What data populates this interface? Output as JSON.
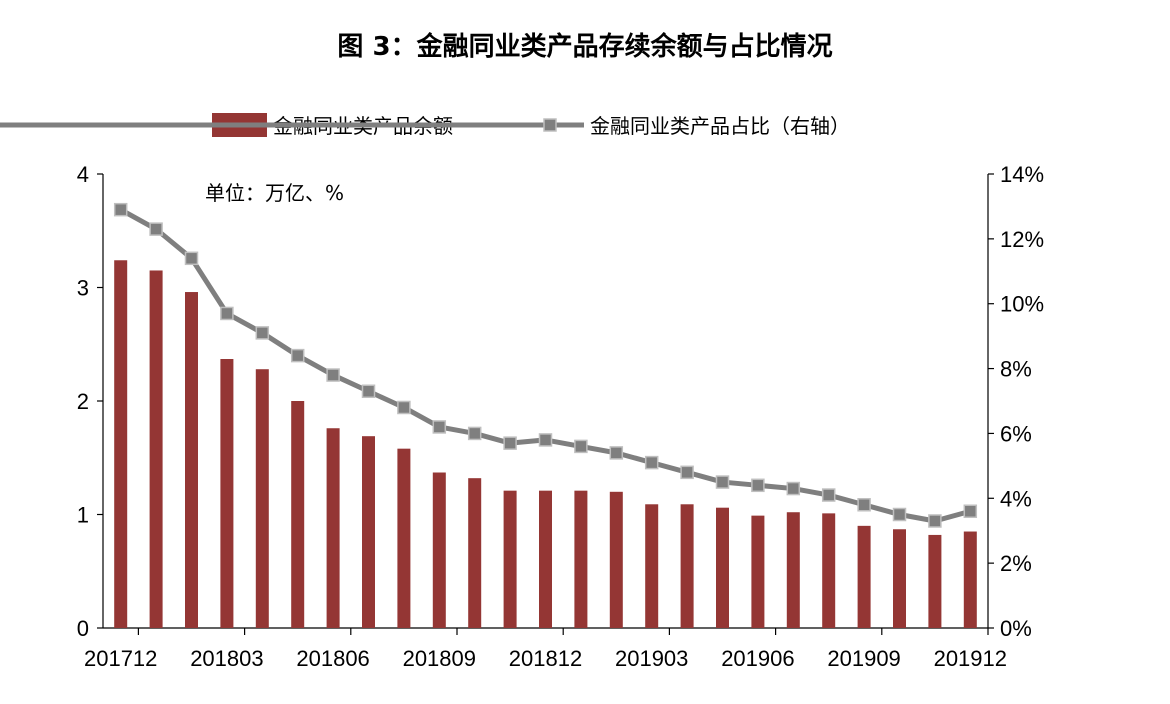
{
  "title": "图 3：金融同业类产品存续余额与占比情况",
  "chart_data": {
    "type": "bar+line",
    "unit_note": "单位：万亿、%",
    "categories": [
      "201712",
      "201801",
      "201802",
      "201803",
      "201804",
      "201805",
      "201806",
      "201807",
      "201808",
      "201809",
      "201810",
      "201811",
      "201812",
      "201901",
      "201902",
      "201903",
      "201904",
      "201905",
      "201906",
      "201907",
      "201908",
      "201909",
      "201910",
      "201911",
      "201912"
    ],
    "x_tick_labels": [
      "201712",
      "201803",
      "201806",
      "201809",
      "201812",
      "201903",
      "201906",
      "201909",
      "201912"
    ],
    "left_axis": {
      "min": 0,
      "max": 4,
      "ticks": [
        "0",
        "1",
        "2",
        "3",
        "4"
      ]
    },
    "right_axis": {
      "min": 0,
      "max": 14,
      "ticks": [
        "0%",
        "2%",
        "4%",
        "6%",
        "8%",
        "10%",
        "12%",
        "14%"
      ]
    },
    "series": [
      {
        "name": "金融同业类产品余额",
        "type": "bar",
        "axis": "left",
        "color": "#943634",
        "values": [
          3.24,
          3.15,
          2.96,
          2.37,
          2.28,
          2.0,
          1.76,
          1.69,
          1.58,
          1.37,
          1.32,
          1.21,
          1.21,
          1.21,
          1.2,
          1.09,
          1.09,
          1.06,
          0.99,
          1.02,
          1.01,
          0.9,
          0.87,
          0.82,
          0.85
        ]
      },
      {
        "name": "金融同业类产品占比（右轴）",
        "type": "line",
        "axis": "right",
        "color": "#7f7f7f",
        "values": [
          12.9,
          12.3,
          11.4,
          9.7,
          9.1,
          8.4,
          7.8,
          7.3,
          6.8,
          6.2,
          6.0,
          5.7,
          5.8,
          5.6,
          5.4,
          5.1,
          4.8,
          4.5,
          4.4,
          4.3,
          4.1,
          3.8,
          3.5,
          3.3,
          3.6
        ]
      }
    ]
  }
}
